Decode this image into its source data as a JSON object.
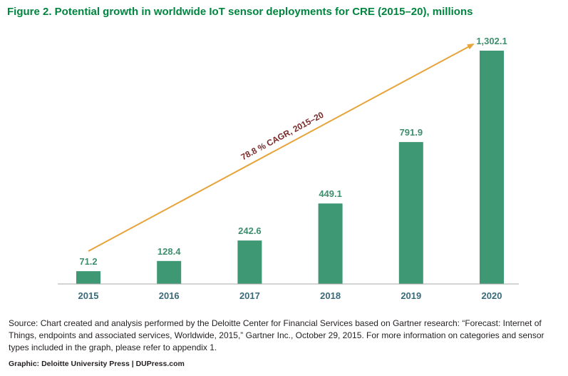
{
  "title": "Figure 2. Potential growth in worldwide IoT sensor deployments for CRE (2015–20), millions",
  "chart_data": {
    "type": "bar",
    "title": "Figure 2. Potential growth in worldwide IoT sensor deployments for CRE (2015–20), millions",
    "categories": [
      "2015",
      "2016",
      "2017",
      "2018",
      "2019",
      "2020"
    ],
    "values": [
      71.2,
      128.4,
      242.6,
      449.1,
      791.9,
      1302.1
    ],
    "value_labels": [
      "71.2",
      "128.4",
      "242.6",
      "449.1",
      "791.9",
      "1,302.1"
    ],
    "xlabel": "",
    "ylabel": "",
    "ylim": [
      0,
      1302.1
    ],
    "grid": false,
    "legend": "none",
    "annotation": "78.8 % CAGR, 2015–20"
  },
  "colors": {
    "bar": "#3f9874",
    "arrow": "#e6a43a",
    "title": "#00853f"
  },
  "source": "Source: Chart created and analysis performed by the Deloitte Center for Financial Services based on Gartner research: “Forecast: Internet of Things, endpoints and associated services, Worldwide, 2015,” Gartner Inc., October 29, 2015. For more information on categories and sensor types included in the graph, please refer to appendix 1.",
  "credit": "Graphic: Deloitte University Press | DUPress.com"
}
